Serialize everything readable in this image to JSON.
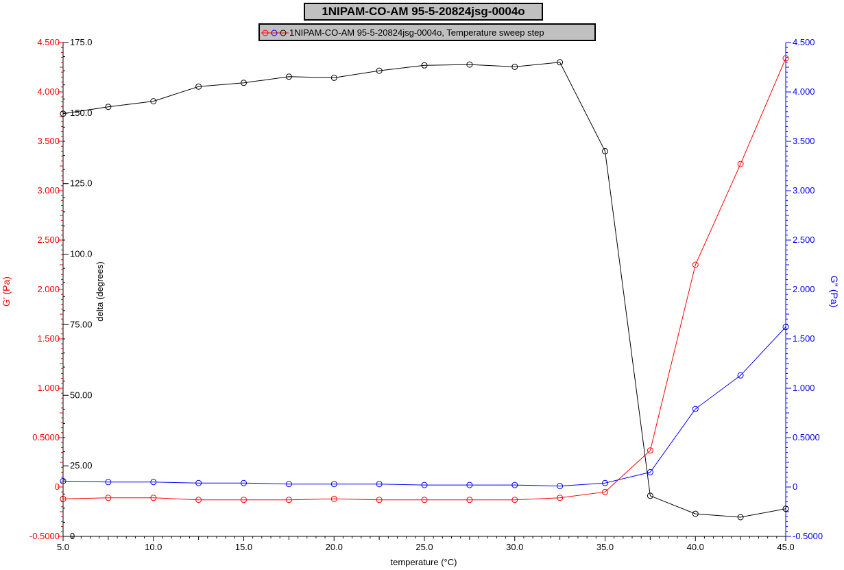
{
  "chart_data": {
    "type": "line",
    "title": "1NIPAM-CO-AM  95-5-20824jsg-0004o",
    "legend_label": "1NIPAM-CO-AM  95-5-20824jsg-0004o, Temperature sweep step",
    "legend_placement": "top-center",
    "xlabel": "temperature (°C)",
    "xlim": [
      5.0,
      45.0
    ],
    "x_ticks": [
      "5.0",
      "10.0",
      "15.0",
      "20.0",
      "25.0",
      "30.0",
      "35.0",
      "40.0",
      "45.0"
    ],
    "x": [
      5.0,
      7.5,
      10.0,
      12.5,
      15.0,
      17.5,
      20.0,
      22.5,
      25.0,
      27.5,
      30.0,
      32.5,
      35.0,
      37.5,
      40.0,
      42.5,
      45.0
    ],
    "axes": {
      "left": {
        "label": "G' (Pa)",
        "color": "#ff0000",
        "lim": [
          -0.5,
          4.5
        ],
        "ticks": [
          "-0.5000",
          "0",
          "0.5000",
          "1.000",
          "1.500",
          "2.000",
          "2.500",
          "3.000",
          "3.500",
          "4.000",
          "4.500"
        ]
      },
      "inner_left": {
        "label": "delta (degrees)",
        "color": "#000000",
        "lim": [
          0,
          175
        ],
        "ticks": [
          "0",
          "25.00",
          "50.00",
          "75.00",
          "100.0",
          "125.0",
          "150.0",
          "175.0"
        ]
      },
      "right": {
        "label": "G'' (Pa)",
        "color": "#0000ff",
        "lim": [
          -0.5,
          4.5
        ],
        "ticks": [
          "-0.5000",
          "0",
          "0.5000",
          "1.000",
          "1.500",
          "2.000",
          "2.500",
          "3.000",
          "3.500",
          "4.000",
          "4.500"
        ]
      }
    },
    "series": [
      {
        "key": "gprime",
        "axis": "left",
        "color": "#ff0000",
        "values": [
          -0.12,
          -0.11,
          -0.11,
          -0.13,
          -0.13,
          -0.13,
          -0.12,
          -0.13,
          -0.13,
          -0.13,
          -0.13,
          -0.11,
          -0.05,
          0.37,
          2.25,
          3.27,
          4.34
        ]
      },
      {
        "key": "gdoubleprime",
        "axis": "right",
        "color": "#0000ff",
        "values": [
          0.06,
          0.05,
          0.05,
          0.04,
          0.04,
          0.03,
          0.03,
          0.03,
          0.02,
          0.02,
          0.02,
          0.01,
          0.04,
          0.15,
          0.79,
          1.13,
          1.62
        ]
      },
      {
        "key": "delta",
        "axis": "inner_left",
        "color": "#000000",
        "values": [
          149.8,
          152.2,
          154.2,
          159.4,
          160.7,
          162.9,
          162.5,
          165.0,
          166.9,
          167.2,
          166.4,
          168.0,
          136.5,
          14.4,
          8.0,
          6.8,
          9.8
        ]
      }
    ]
  }
}
